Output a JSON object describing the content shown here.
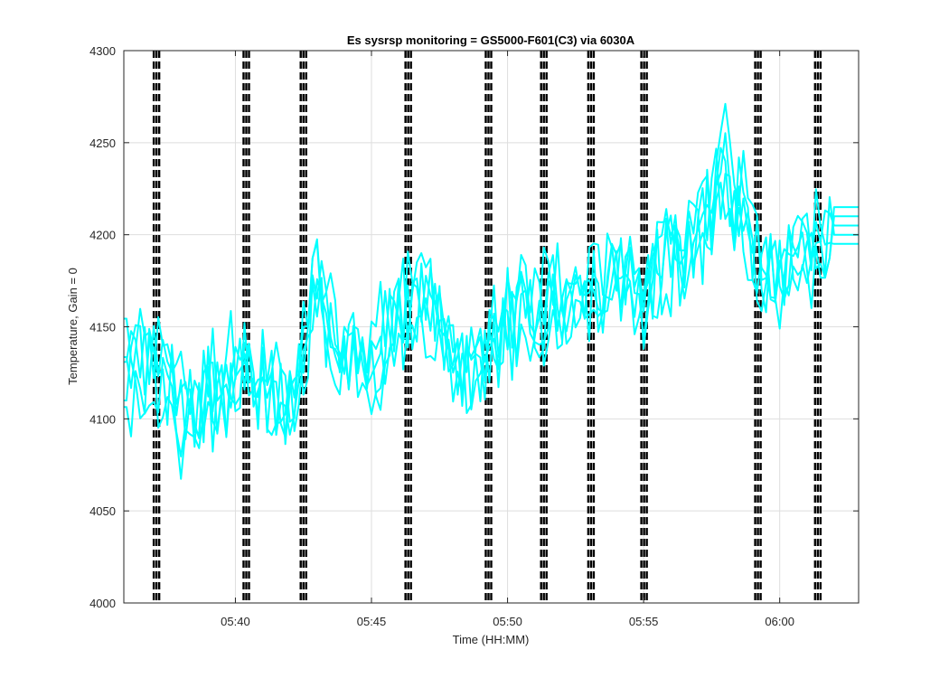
{
  "chart_data": {
    "type": "line",
    "title": "Es sysrsp monitoring = GS5000-F601(C3) via 6030A",
    "xlabel": "Time (HH:MM)",
    "ylabel": "Temperature, Gain = 0",
    "x_unit": "HH:MM",
    "xlim": [
      "05:35:54",
      "06:02:54"
    ],
    "ylim": [
      4000,
      4300
    ],
    "x_ticks": [
      "05:40",
      "05:45",
      "05:50",
      "05:55",
      "06:00"
    ],
    "y_ticks": [
      4000,
      4050,
      4100,
      4150,
      4200,
      4250,
      4300
    ],
    "grid": true,
    "series_color": "#00ffff",
    "marker_color": "#000000",
    "series": [
      {
        "x": [
          "05:36",
          "05:37",
          "05:38",
          "05:39",
          "05:40",
          "05:41",
          "05:42",
          "05:43",
          "05:44",
          "05:45",
          "05:46",
          "05:47",
          "05:48",
          "05:49",
          "05:50",
          "05:51",
          "05:52",
          "05:53",
          "05:54",
          "05:55",
          "05:56",
          "05:57",
          "05:58",
          "05:59",
          "06:00",
          "06:01",
          "06:02"
        ],
        "values": [
          4125,
          4140,
          4105,
          4110,
          4120,
          4115,
          4100,
          4180,
          4140,
          4130,
          4160,
          4170,
          4130,
          4140,
          4155,
          4165,
          4160,
          4165,
          4180,
          4170,
          4190,
          4195,
          4230,
          4200,
          4170,
          4195,
          4200
        ]
      },
      {
        "x": [
          "05:36",
          "05:37",
          "05:38",
          "05:39",
          "05:40",
          "05:41",
          "05:42",
          "05:43",
          "05:44",
          "05:45",
          "05:46",
          "05:47",
          "05:48",
          "05:49",
          "05:50",
          "05:51",
          "05:52",
          "05:53",
          "05:54",
          "05:55",
          "05:56",
          "05:57",
          "05:58",
          "05:59",
          "06:00",
          "06:01",
          "06:02"
        ],
        "values": [
          4115,
          4130,
          4095,
          4120,
          4135,
          4110,
          4110,
          4165,
          4130,
          4120,
          4150,
          4165,
          4120,
          4130,
          4150,
          4155,
          4150,
          4175,
          4190,
          4160,
          4200,
          4185,
          4240,
          4190,
          4160,
          4185,
          4210
        ]
      },
      {
        "x": [
          "05:36",
          "05:37",
          "05:38",
          "05:39",
          "05:40",
          "05:41",
          "05:42",
          "05:43",
          "05:44",
          "05:45",
          "05:46",
          "05:47",
          "05:48",
          "05:49",
          "05:50",
          "05:51",
          "05:52",
          "05:53",
          "05:54",
          "05:55",
          "05:56",
          "05:57",
          "05:58",
          "05:59",
          "06:00",
          "06:01",
          "06:02"
        ],
        "values": [
          4135,
          4120,
          4110,
          4100,
          4125,
          4125,
          4105,
          4170,
          4145,
          4125,
          4165,
          4160,
          4125,
          4135,
          4160,
          4170,
          4170,
          4170,
          4175,
          4175,
          4185,
          4200,
          4220,
          4195,
          4175,
          4190,
          4205
        ]
      },
      {
        "x": [
          "05:36",
          "05:37",
          "05:38",
          "05:39",
          "05:40",
          "05:41",
          "05:42",
          "05:43",
          "05:44",
          "05:45",
          "05:46",
          "05:47",
          "05:48",
          "05:49",
          "05:50",
          "05:51",
          "05:52",
          "05:53",
          "05:54",
          "05:55",
          "05:56",
          "05:57",
          "05:58",
          "05:59",
          "06:00",
          "06:01",
          "06:02"
        ],
        "values": [
          4120,
          4145,
          4100,
          4115,
          4130,
          4120,
          4115,
          4160,
          4135,
          4135,
          4155,
          4175,
          4135,
          4125,
          4145,
          4160,
          4155,
          4160,
          4185,
          4165,
          4195,
          4190,
          4250,
          4205,
          4165,
          4200,
          4195
        ]
      },
      {
        "x": [
          "05:36",
          "05:37",
          "05:38",
          "05:39",
          "05:40",
          "05:41",
          "05:42",
          "05:43",
          "05:44",
          "05:45",
          "05:46",
          "05:47",
          "05:48",
          "05:49",
          "05:50",
          "05:51",
          "05:52",
          "05:53",
          "05:54",
          "05:55",
          "05:56",
          "05:57",
          "05:58",
          "05:59",
          "06:00",
          "06:01",
          "06:02"
        ],
        "values": [
          4130,
          4125,
          4090,
          4105,
          4115,
          4130,
          4095,
          4175,
          4125,
          4140,
          4170,
          4155,
          4115,
          4145,
          4150,
          4150,
          4165,
          4170,
          4170,
          4180,
          4180,
          4205,
          4235,
          4185,
          4180,
          4180,
          4215
        ]
      }
    ],
    "markers": {
      "times": [
        "05:37:06",
        "05:40:24",
        "05:42:30",
        "05:46:21",
        "05:49:18",
        "05:51:20",
        "05:53:04",
        "05:55:01",
        "05:59:12",
        "06:01:24"
      ]
    }
  }
}
